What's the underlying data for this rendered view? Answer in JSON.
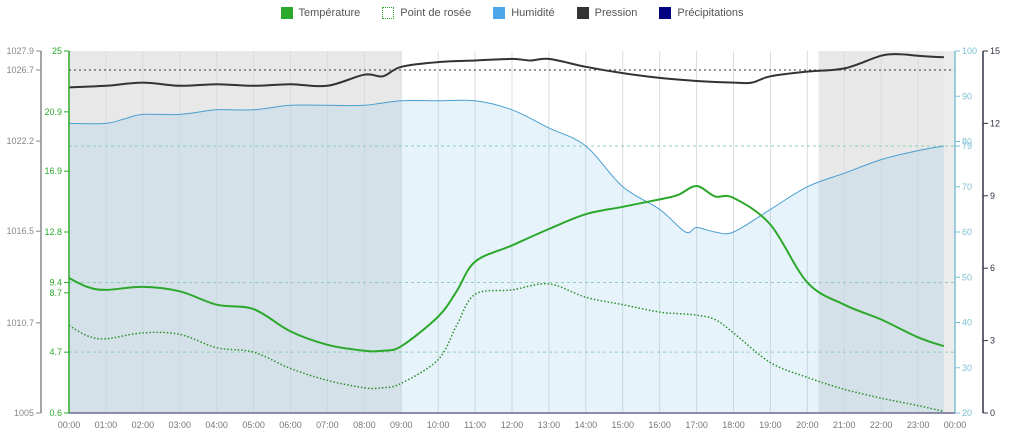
{
  "chart_data": {
    "type": "line",
    "title": "",
    "legend": {
      "position": "top-center",
      "items": [
        {
          "name": "Température",
          "color": "#2ca82c",
          "style": "solid"
        },
        {
          "name": "Point de rosée",
          "color": "#2ca82c",
          "style": "dotted"
        },
        {
          "name": "Humidité",
          "color": "#4da6e8",
          "style": "solid"
        },
        {
          "name": "Pression",
          "color": "#333333",
          "style": "solid"
        },
        {
          "name": "Précipitations",
          "color": "#000080",
          "style": "solid"
        }
      ]
    },
    "x": [
      "00:00",
      "01:00",
      "02:00",
      "03:00",
      "04:00",
      "05:00",
      "06:00",
      "07:00",
      "08:00",
      "09:00",
      "10:00",
      "11:00",
      "12:00",
      "13:00",
      "14:00",
      "15:00",
      "16:00",
      "17:00",
      "18:00",
      "19:00",
      "20:00",
      "21:00",
      "22:00",
      "23:00",
      "00:00"
    ],
    "night_shading": [
      {
        "from": 0,
        "to": 9.0
      },
      {
        "from": 20.3,
        "to": 23.7
      }
    ],
    "axes": {
      "pressure": {
        "side": "left-outer",
        "ticks": [
          1027.9,
          1026.7,
          1022.2,
          1016.5,
          1010.7,
          1005
        ],
        "range": [
          1005,
          1027.9
        ],
        "color": "#555555"
      },
      "temperature": {
        "side": "left",
        "ticks": [
          25,
          20.9,
          16.9,
          12.8,
          9.4,
          8.7,
          4.7,
          0.6
        ],
        "range": [
          0.6,
          25
        ],
        "color": "#2ca82c"
      },
      "humidity": {
        "side": "right",
        "ticks": [
          100,
          90,
          80,
          79,
          70,
          60,
          50,
          40,
          30,
          20
        ],
        "range": [
          20,
          100
        ],
        "color": "#4aa0c0"
      },
      "precipitation": {
        "side": "right-outer",
        "ticks": [
          15,
          12,
          9,
          6,
          3,
          0
        ],
        "range": [
          0,
          15
        ],
        "color": "#333344"
      }
    },
    "reference_lines": [
      {
        "axis": "pressure",
        "value": 1026.7,
        "style": "dotted",
        "color": "#333333"
      },
      {
        "axis": "humidity",
        "value": 79,
        "style": "dashed",
        "color": "#8fcfb0"
      },
      {
        "axis": "temperature",
        "value": 9.4,
        "style": "dashed",
        "color": "#8fcfb0"
      },
      {
        "axis": "temperature",
        "value": 4.7,
        "style": "dashed",
        "color": "#8fcfb0"
      }
    ],
    "series": [
      {
        "name": "Température",
        "axis": "temperature",
        "t": [
          0,
          0.5,
          1,
          2,
          3,
          4,
          5,
          6,
          7,
          8,
          8.5,
          9,
          10,
          10.5,
          11,
          12,
          13,
          14,
          15,
          16,
          16.5,
          17,
          17.5,
          18,
          19,
          20,
          21,
          22,
          23,
          23.7
        ],
        "values": [
          9.7,
          9.1,
          8.9,
          9.1,
          8.8,
          7.9,
          7.6,
          6.1,
          5.2,
          4.8,
          4.8,
          5.1,
          7.1,
          8.8,
          10.8,
          11.9,
          13.0,
          14.0,
          14.5,
          15.0,
          15.3,
          15.9,
          15.2,
          15.1,
          13.3,
          9.4,
          7.9,
          6.9,
          5.7,
          5.1
        ]
      },
      {
        "name": "Point de rosée",
        "axis": "temperature",
        "t": [
          0,
          0.5,
          1,
          2,
          3,
          4,
          5,
          6,
          7,
          8,
          8.5,
          9,
          10,
          10.5,
          11,
          12,
          13,
          14,
          15,
          16,
          16.5,
          17,
          17.5,
          18,
          19,
          20,
          21,
          22,
          23,
          23.7
        ],
        "values": [
          6.5,
          5.8,
          5.6,
          6.0,
          5.9,
          5.0,
          4.7,
          3.6,
          2.8,
          2.3,
          2.3,
          2.6,
          4.2,
          6.5,
          8.6,
          8.9,
          9.3,
          8.4,
          7.9,
          7.4,
          7.3,
          7.2,
          6.9,
          6.0,
          4.0,
          3.0,
          2.2,
          1.6,
          1.1,
          0.7
        ]
      },
      {
        "name": "Humidité",
        "axis": "humidity",
        "t": [
          0,
          1,
          1.5,
          2,
          3,
          4,
          5,
          6,
          7,
          8,
          9,
          10,
          11,
          12,
          13,
          14,
          15,
          16,
          16.7,
          17,
          17.5,
          18,
          19,
          20,
          21,
          22,
          23,
          23.7
        ],
        "values": [
          84,
          84,
          85,
          86,
          86,
          87,
          87,
          88,
          88,
          88,
          89,
          89,
          89,
          87,
          83,
          79,
          70,
          65,
          60,
          61,
          60,
          60,
          65,
          70,
          73,
          76,
          78,
          79
        ]
      },
      {
        "name": "Pression",
        "axis": "pressure",
        "t": [
          0,
          1,
          2,
          3,
          4,
          5,
          6,
          7,
          8,
          8.5,
          9,
          10,
          11,
          12,
          12.5,
          13,
          14,
          15,
          16,
          17,
          18,
          18.5,
          19,
          20,
          21,
          22,
          22.5,
          23,
          23.7
        ],
        "values": [
          1025.6,
          1025.7,
          1025.9,
          1025.7,
          1025.8,
          1025.7,
          1025.8,
          1025.7,
          1026.4,
          1026.3,
          1026.9,
          1027.2,
          1027.3,
          1027.4,
          1027.3,
          1027.4,
          1026.9,
          1026.5,
          1026.2,
          1026.0,
          1025.9,
          1025.9,
          1026.3,
          1026.6,
          1026.8,
          1027.6,
          1027.7,
          1027.6,
          1027.5
        ]
      },
      {
        "name": "Précipitations",
        "axis": "precipitation",
        "t": [
          0,
          23.7
        ],
        "values": [
          0,
          0
        ]
      }
    ]
  }
}
